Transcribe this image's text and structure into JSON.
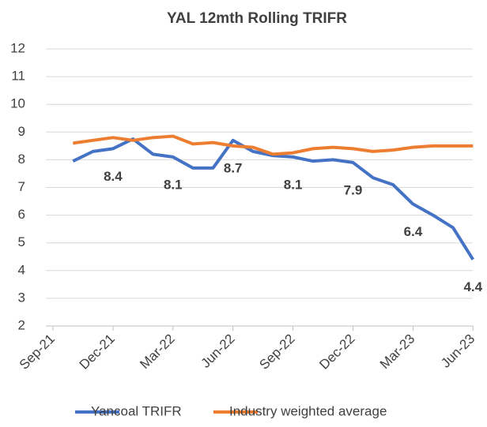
{
  "chart_data": {
    "type": "line",
    "title": "YAL 12mth Rolling TRIFR",
    "categories": [
      "Sep-21",
      null,
      null,
      "Dec-21",
      null,
      null,
      "Mar-22",
      null,
      null,
      "Jun-22",
      null,
      null,
      "Sep-22",
      null,
      null,
      "Dec-22",
      null,
      null,
      "Mar-23",
      null,
      null,
      "Jun-23"
    ],
    "series": [
      {
        "name": "Yancoal TRIFR",
        "color": "#4472c4",
        "values": [
          null,
          7.95,
          8.3,
          8.4,
          8.75,
          8.2,
          8.1,
          7.7,
          7.7,
          8.7,
          8.3,
          8.15,
          8.1,
          7.95,
          8.0,
          7.9,
          7.35,
          7.1,
          6.4,
          6.0,
          5.55,
          4.4
        ],
        "value_labels": [
          null,
          null,
          null,
          "8.4",
          null,
          null,
          "8.1",
          null,
          null,
          "8.7",
          null,
          null,
          "8.1",
          null,
          null,
          "7.9",
          null,
          null,
          "6.4",
          null,
          null,
          "4.4"
        ]
      },
      {
        "name": "Industry weighted average",
        "color": "#ed7d31",
        "values": [
          null,
          8.6,
          8.7,
          8.8,
          8.7,
          8.8,
          8.85,
          8.57,
          8.62,
          8.5,
          8.45,
          8.2,
          8.25,
          8.4,
          8.45,
          8.4,
          8.3,
          8.35,
          8.45,
          8.5,
          8.5,
          8.5
        ]
      }
    ],
    "ylim": [
      2,
      12
    ],
    "yticks": [
      2,
      3,
      4,
      5,
      6,
      7,
      8,
      9,
      10,
      11,
      12
    ],
    "grid": true,
    "legend": "bottom"
  }
}
